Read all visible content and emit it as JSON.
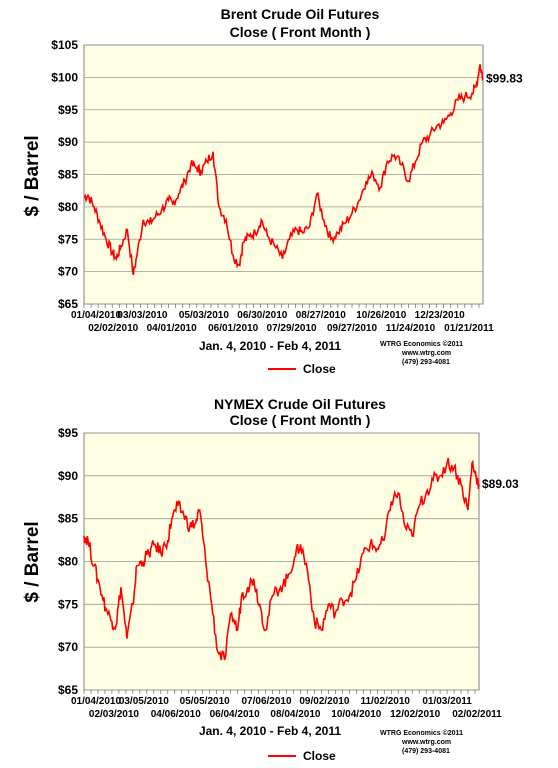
{
  "chart_data": [
    {
      "type": "line",
      "title": "Brent Crude Oil Futures",
      "subtitle": "Close ( Front Month )",
      "ylabel": "$ / Barrel",
      "xlabel": "Jan. 4, 2010 - Feb 4, 2011",
      "credit": [
        "WTRG Economics ©2011",
        "www.wtrg.com",
        "(479) 293-4081"
      ],
      "ylim": [
        65,
        105
      ],
      "yticks": [
        "$65",
        "$70",
        "$75",
        "$80",
        "$85",
        "$90",
        "$95",
        "$100",
        "$105"
      ],
      "xlim": [
        "01/04/2010",
        "02/04/2011"
      ],
      "xticks_upper": [
        "01/04/2010",
        "03/03/2010",
        "05/03/2010",
        "06/30/2010",
        "08/27/2010",
        "10/26/2010",
        "12/23/2010"
      ],
      "xticks_lower": [
        "02/02/2010",
        "04/01/2010",
        "06/01/2010",
        "07/29/2010",
        "09/27/2010",
        "11/24/2010",
        "01/21/2011"
      ],
      "grid": true,
      "legend": "bottom-center",
      "last_value_label": "$99.83",
      "series": [
        {
          "name": "Close",
          "color": "#ff0000",
          "x": [
            "2010-01-04",
            "2010-01-08",
            "2010-01-14",
            "2010-01-20",
            "2010-01-26",
            "2010-02-01",
            "2010-02-05",
            "2010-02-10",
            "2010-02-16",
            "2010-02-22",
            "2010-02-26",
            "2010-03-04",
            "2010-03-10",
            "2010-03-16",
            "2010-03-22",
            "2010-03-29",
            "2010-04-02",
            "2010-04-08",
            "2010-04-14",
            "2010-04-20",
            "2010-04-26",
            "2010-04-30",
            "2010-05-06",
            "2010-05-12",
            "2010-05-18",
            "2010-05-25",
            "2010-06-01",
            "2010-06-07",
            "2010-06-11",
            "2010-06-17",
            "2010-06-23",
            "2010-06-29",
            "2010-07-05",
            "2010-07-12",
            "2010-07-20",
            "2010-07-27",
            "2010-08-03",
            "2010-08-09",
            "2010-08-16",
            "2010-08-23",
            "2010-08-30",
            "2010-09-06",
            "2010-09-13",
            "2010-09-20",
            "2010-09-27",
            "2010-10-04",
            "2010-10-11",
            "2010-10-18",
            "2010-10-25",
            "2010-11-01",
            "2010-11-08",
            "2010-11-15",
            "2010-11-22",
            "2010-11-29",
            "2010-12-06",
            "2010-12-13",
            "2010-12-20",
            "2010-12-27",
            "2011-01-03",
            "2011-01-10",
            "2011-01-17",
            "2011-01-24",
            "2011-01-28",
            "2011-02-01",
            "2011-02-04"
          ],
          "values": [
            81.5,
            81.8,
            80.0,
            77.5,
            75.0,
            73.0,
            72.0,
            74.0,
            76.5,
            69.5,
            73.0,
            78.0,
            77.5,
            78.5,
            79.5,
            81.0,
            80.5,
            82.0,
            84.0,
            86.5,
            86.0,
            85.5,
            87.0,
            88.5,
            80.0,
            78.0,
            72.5,
            71.0,
            74.5,
            75.5,
            76.0,
            78.0,
            75.5,
            74.0,
            72.0,
            75.0,
            76.5,
            76.0,
            77.0,
            82.0,
            78.0,
            75.0,
            76.0,
            77.5,
            79.0,
            81.0,
            84.0,
            85.0,
            83.0,
            87.0,
            88.0,
            86.5,
            84.0,
            87.0,
            90.0,
            91.0,
            92.5,
            93.0,
            94.5,
            96.5,
            97.0,
            97.5,
            98.5,
            102.0,
            99.83
          ]
        }
      ]
    },
    {
      "type": "line",
      "title": "NYMEX Crude Oil Futures",
      "subtitle": "Close ( Front Month )",
      "ylabel": "$ / Barrel",
      "xlabel": "Jan. 4, 2010 - Feb 4, 2011",
      "credit": [
        "WTRG Economics ©2011",
        "www.wtrg.com",
        "(479) 293-4081"
      ],
      "ylim": [
        65,
        95
      ],
      "yticks": [
        "$65",
        "$70",
        "$75",
        "$80",
        "$85",
        "$90",
        "$95"
      ],
      "xlim": [
        "01/04/2010",
        "02/04/2011"
      ],
      "xticks_upper": [
        "01/04/2010",
        "03/05/2010",
        "05/05/2010",
        "07/06/2010",
        "09/02/2010",
        "11/02/2010",
        "01/03/2011"
      ],
      "xticks_lower": [
        "02/03/2010",
        "04/06/2010",
        "06/04/2010",
        "08/04/2010",
        "10/04/2010",
        "12/02/2010",
        "02/02/2011"
      ],
      "grid": true,
      "legend": "bottom-center",
      "last_value_label": "$89.03",
      "series": [
        {
          "name": "Close",
          "color": "#ff0000",
          "x": [
            "2010-01-04",
            "2010-01-08",
            "2010-01-14",
            "2010-01-20",
            "2010-01-26",
            "2010-02-01",
            "2010-02-05",
            "2010-02-10",
            "2010-02-16",
            "2010-02-22",
            "2010-02-26",
            "2010-03-04",
            "2010-03-10",
            "2010-03-16",
            "2010-03-22",
            "2010-03-29",
            "2010-04-02",
            "2010-04-08",
            "2010-04-14",
            "2010-04-20",
            "2010-04-26",
            "2010-04-30",
            "2010-05-06",
            "2010-05-12",
            "2010-05-18",
            "2010-05-25",
            "2010-06-01",
            "2010-06-07",
            "2010-06-11",
            "2010-06-17",
            "2010-06-23",
            "2010-06-29",
            "2010-07-05",
            "2010-07-12",
            "2010-07-20",
            "2010-07-27",
            "2010-08-03",
            "2010-08-09",
            "2010-08-16",
            "2010-08-23",
            "2010-08-30",
            "2010-09-06",
            "2010-09-13",
            "2010-09-20",
            "2010-09-27",
            "2010-10-04",
            "2010-10-11",
            "2010-10-18",
            "2010-10-25",
            "2010-11-01",
            "2010-11-08",
            "2010-11-15",
            "2010-11-22",
            "2010-11-29",
            "2010-12-06",
            "2010-12-13",
            "2010-12-20",
            "2010-12-27",
            "2011-01-03",
            "2011-01-10",
            "2011-01-17",
            "2011-01-24",
            "2011-01-28",
            "2011-02-01",
            "2011-02-04"
          ],
          "values": [
            83.0,
            82.5,
            79.5,
            77.0,
            74.5,
            73.0,
            72.5,
            77.0,
            71.0,
            75.0,
            79.5,
            80.0,
            81.0,
            82.0,
            81.0,
            82.5,
            85.0,
            86.5,
            85.5,
            84.0,
            84.5,
            86.0,
            80.0,
            75.0,
            69.5,
            68.5,
            74.0,
            72.0,
            76.0,
            77.0,
            78.0,
            75.0,
            72.0,
            76.0,
            77.0,
            78.0,
            80.5,
            82.0,
            79.0,
            73.0,
            72.0,
            75.0,
            74.0,
            75.5,
            76.0,
            78.0,
            81.0,
            82.0,
            81.5,
            82.5,
            87.0,
            88.0,
            84.0,
            83.0,
            86.5,
            88.0,
            89.5,
            90.0,
            91.5,
            91.0,
            89.0,
            86.0,
            91.5,
            90.0,
            89.03
          ]
        }
      ]
    }
  ]
}
